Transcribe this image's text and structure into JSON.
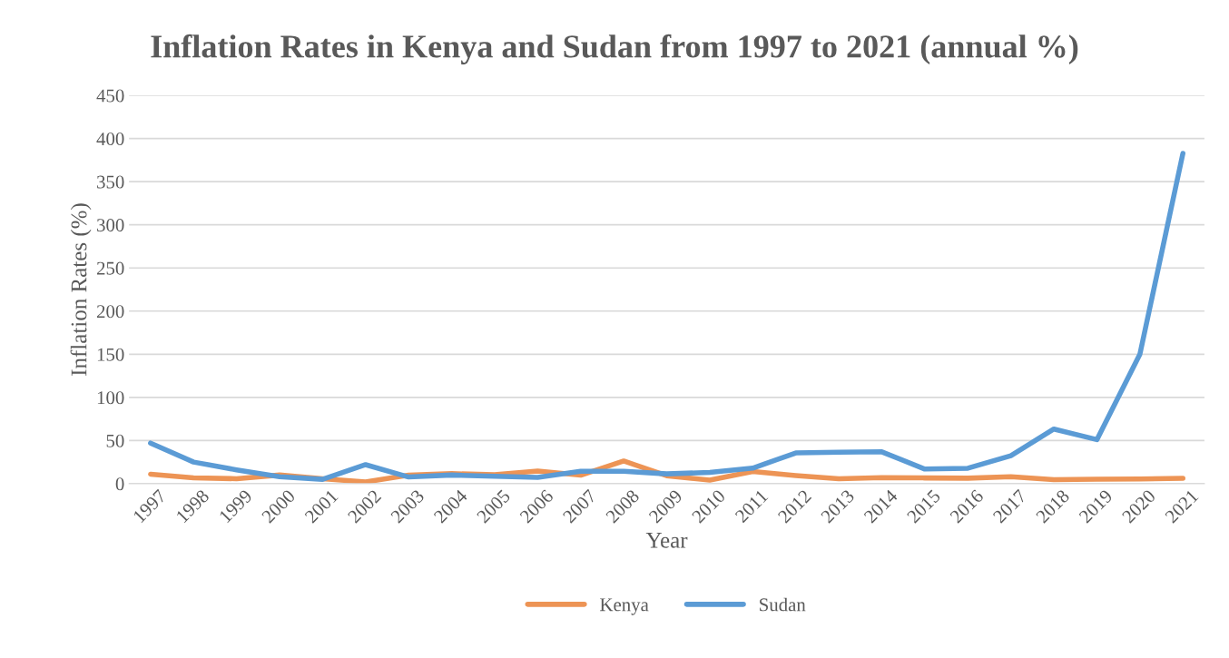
{
  "chart_data": {
    "type": "line",
    "title": "Inflation Rates in Kenya and Sudan from 1997 to 2021 (annual %)",
    "xlabel": "Year",
    "ylabel": "Inflation Rates (%)",
    "categories": [
      "1997",
      "1998",
      "1999",
      "2000",
      "2001",
      "2002",
      "2003",
      "2004",
      "2005",
      "2006",
      "2007",
      "2008",
      "2009",
      "2010",
      "2011",
      "2012",
      "2013",
      "2014",
      "2015",
      "2016",
      "2017",
      "2018",
      "2019",
      "2020",
      "2021"
    ],
    "series": [
      {
        "name": "Kenya",
        "color": "#ed9455",
        "values": [
          11,
          6.7,
          5.7,
          10,
          5.7,
          2,
          9.8,
          11.6,
          10.3,
          14.5,
          9.8,
          26.2,
          9.2,
          4,
          14,
          9.4,
          5.7,
          6.9,
          6.6,
          6.3,
          8,
          4.7,
          5.2,
          5.4,
          6.1
        ]
      },
      {
        "name": "Sudan",
        "color": "#5b9bd5",
        "values": [
          47,
          25,
          16,
          8,
          5,
          22,
          7.7,
          10,
          8.5,
          7.2,
          14.3,
          14.3,
          11.3,
          13,
          18,
          35.6,
          36.5,
          36.9,
          16.9,
          17.8,
          32.4,
          63.3,
          51,
          150,
          382.8
        ]
      }
    ],
    "ylim": [
      0,
      450
    ],
    "yticks": [
      0,
      50,
      100,
      150,
      200,
      250,
      300,
      350,
      400,
      450
    ],
    "grid": "y",
    "legend": "bottom",
    "marker": "none",
    "line_style": "solid"
  }
}
